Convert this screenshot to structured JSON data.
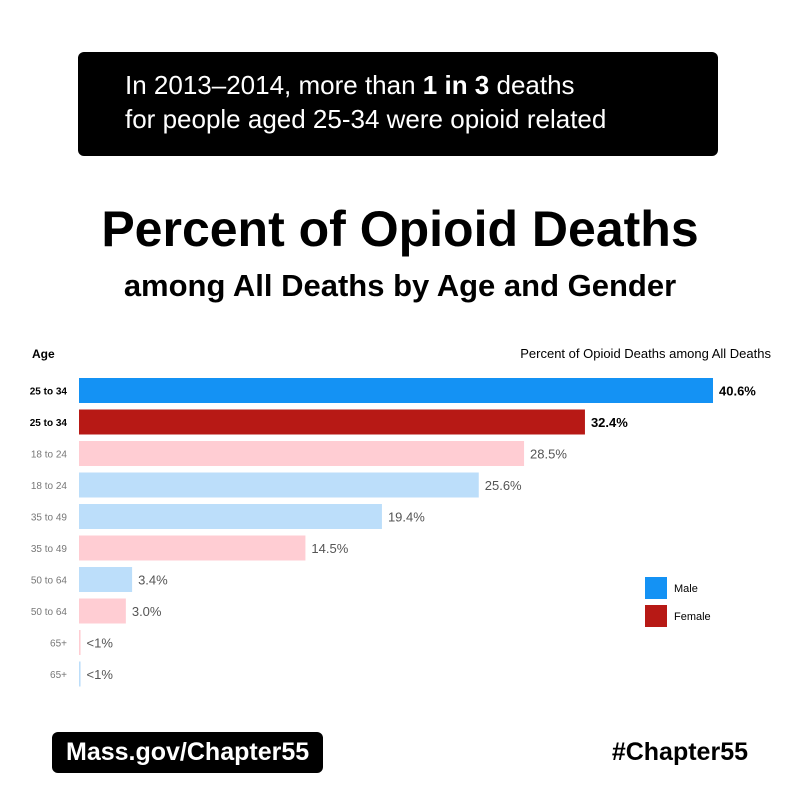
{
  "banner": {
    "line1_pre": "In 2013–2014, more than ",
    "line1_bold": "1 in 3",
    "line1_post": " deaths",
    "line2": "for people aged 25-34 were opioid related"
  },
  "title": "Percent of Opioid Deaths",
  "subtitle": "among All Deaths by Age and Gender",
  "footer": {
    "link": "Mass.gov/Chapter55",
    "hashtag": "#Chapter55"
  },
  "chart_data": {
    "type": "bar",
    "orientation": "horizontal",
    "title": "Percent of Opioid Deaths among All Deaths",
    "ylabel": "Age",
    "xlim": [
      0,
      40.6
    ],
    "bars": [
      {
        "category": "25 to 34",
        "gender": "Male",
        "value": 40.6,
        "label": "40.6%",
        "highlight": true
      },
      {
        "category": "25 to 34",
        "gender": "Female",
        "value": 32.4,
        "label": "32.4%",
        "highlight": true
      },
      {
        "category": "18 to 24",
        "gender": "Female",
        "value": 28.5,
        "label": "28.5%",
        "highlight": false
      },
      {
        "category": "18 to 24",
        "gender": "Male",
        "value": 25.6,
        "label": "25.6%",
        "highlight": false
      },
      {
        "category": "35 to 49",
        "gender": "Male",
        "value": 19.4,
        "label": "19.4%",
        "highlight": false
      },
      {
        "category": "35 to 49",
        "gender": "Female",
        "value": 14.5,
        "label": "14.5%",
        "highlight": false
      },
      {
        "category": "50 to 64",
        "gender": "Male",
        "value": 3.4,
        "label": "3.4%",
        "highlight": false
      },
      {
        "category": "50 to 64",
        "gender": "Female",
        "value": 3.0,
        "label": "3.0%",
        "highlight": false
      },
      {
        "category": "65+",
        "gender": "Female",
        "value": 0.1,
        "label": "<1%",
        "highlight": false
      },
      {
        "category": "65+",
        "gender": "Male",
        "value": 0.1,
        "label": "<1%",
        "highlight": false
      }
    ],
    "legend": [
      {
        "name": "Male",
        "color": "#1492f4"
      },
      {
        "name": "Female",
        "color": "#b71915"
      }
    ],
    "legend_position": "right",
    "colors": {
      "Male": "#1492f4",
      "Female": "#b71915",
      "Male_light": "#bcdefa",
      "Female_light": "#ffcdd3"
    }
  }
}
